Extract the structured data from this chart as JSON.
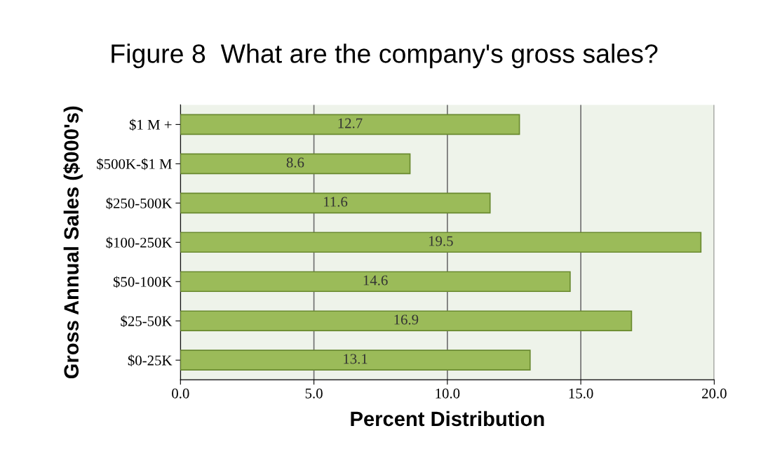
{
  "chart_data": {
    "type": "bar",
    "orientation": "horizontal",
    "title": "Figure 8  What are the company's gross sales?",
    "xlabel": "Percent Distribution",
    "ylabel": "Gross Annual Sales ($000's)",
    "categories": [
      "$1 M +",
      "$500K-$1 M",
      "$250-500K",
      "$100-250K",
      "$50-100K",
      "$25-50K",
      "$0-25K"
    ],
    "values": [
      12.7,
      8.6,
      11.6,
      19.5,
      14.6,
      16.9,
      13.1
    ],
    "color": "#9bbb59",
    "xlim": [
      0,
      20
    ],
    "xticks": [
      {
        "value": 0,
        "label": "0.0"
      },
      {
        "value": 5,
        "label": "5.0"
      },
      {
        "value": 10,
        "label": "10.0"
      },
      {
        "value": 15,
        "label": "15.0"
      },
      {
        "value": 20,
        "label": "20.0"
      }
    ],
    "grid": "x",
    "data_labels": true
  }
}
